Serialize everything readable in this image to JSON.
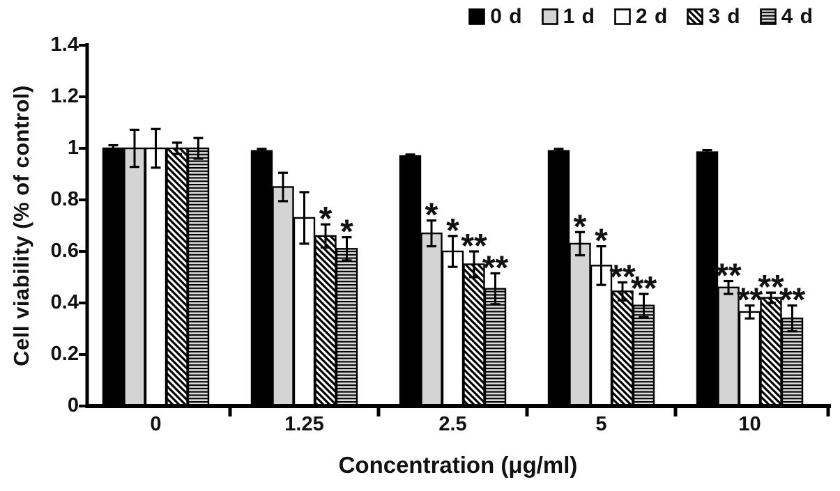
{
  "chart_data": {
    "type": "bar",
    "title": "",
    "xlabel": "Concentration (μg/ml)",
    "ylabel": "Cell viability (% of control)",
    "ylim": [
      0,
      1.4
    ],
    "yticks": [
      0,
      0.2,
      0.4,
      0.6,
      0.8,
      1.0,
      1.2,
      1.4
    ],
    "ytick_labels": [
      "0",
      "0.2",
      "0.4",
      "0.6",
      "0.8",
      "1",
      "1.2",
      "1.4"
    ],
    "categories": [
      "0",
      "1.25",
      "2.5",
      "5",
      "10"
    ],
    "grid": false,
    "legend_position": "top-right",
    "bar_outline_color": "#000000",
    "error_bar_color": "#000000",
    "series": [
      {
        "name": "0 d",
        "pattern": "solid-black",
        "fill": "#000000",
        "values": [
          1.0,
          0.99,
          0.97,
          0.99,
          0.985
        ],
        "errors": [
          0.012,
          0.008,
          0.006,
          0.008,
          0.008
        ],
        "sig": [
          "",
          "",
          "",
          "",
          ""
        ]
      },
      {
        "name": "1 d",
        "pattern": "solid-gray",
        "fill": "#d4d4d4",
        "values": [
          1.0,
          0.85,
          0.67,
          0.63,
          0.46
        ],
        "errors": [
          0.072,
          0.055,
          0.05,
          0.045,
          0.025
        ],
        "sig": [
          "",
          "",
          "*",
          "*",
          "**"
        ]
      },
      {
        "name": "2 d",
        "pattern": "solid-white",
        "fill": "#ffffff",
        "values": [
          1.0,
          0.73,
          0.6,
          0.545,
          0.365
        ],
        "errors": [
          0.075,
          0.1,
          0.06,
          0.075,
          0.025
        ],
        "sig": [
          "",
          "",
          "*",
          "*",
          "**"
        ]
      },
      {
        "name": "3 d",
        "pattern": "diagonal-stripes",
        "fill": "#ffffff",
        "values": [
          1.0,
          0.66,
          0.55,
          0.445,
          0.42
        ],
        "errors": [
          0.022,
          0.045,
          0.05,
          0.035,
          0.02
        ],
        "sig": [
          "",
          "*",
          "**",
          "**",
          "**"
        ]
      },
      {
        "name": "4 d",
        "pattern": "horizontal-stripes",
        "fill": "#e0e0e0",
        "values": [
          1.0,
          0.61,
          0.455,
          0.39,
          0.34
        ],
        "errors": [
          0.04,
          0.045,
          0.06,
          0.045,
          0.05
        ],
        "sig": [
          "",
          "*",
          "**",
          "**",
          "**"
        ]
      }
    ]
  }
}
